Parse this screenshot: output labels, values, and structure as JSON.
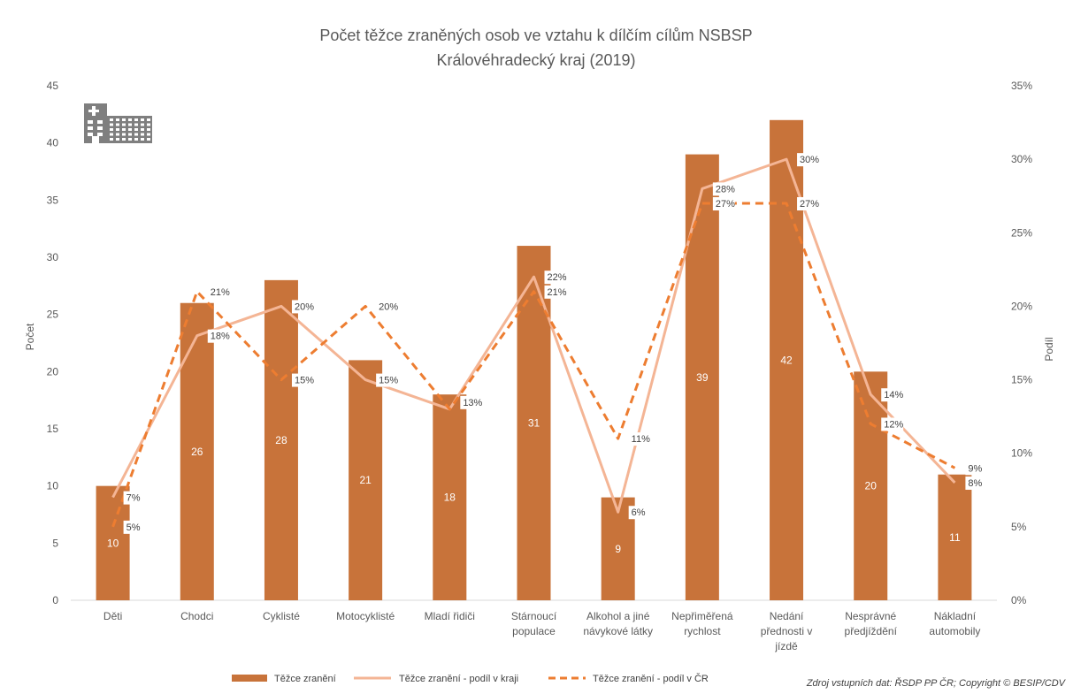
{
  "chart_data": {
    "type": "bar",
    "title": "Počet těžce zraněných osob ve vztahu k dílčím cílům NSBSP",
    "subtitle": "Královéhradecký kraj (2019)",
    "ylabel": "Počet",
    "y2label": "Podíl",
    "ylim": [
      0,
      45
    ],
    "y2lim": [
      0,
      35
    ],
    "yticks": [
      "0",
      "5",
      "10",
      "15",
      "20",
      "25",
      "30",
      "35",
      "40",
      "45"
    ],
    "y2ticks": [
      "0%",
      "5%",
      "10%",
      "15%",
      "20%",
      "25%",
      "30%",
      "35%"
    ],
    "categories": [
      [
        "Děti"
      ],
      [
        "Chodci"
      ],
      [
        "Cyklisté"
      ],
      [
        "Motocyklisté"
      ],
      [
        "Mladí řidiči"
      ],
      [
        "Stárnoucí",
        "populace"
      ],
      [
        "Alkohol a jiné",
        "návykové látky"
      ],
      [
        "Nepřiměřená",
        "rychlost"
      ],
      [
        "Nedání",
        "přednosti v",
        "jízdě"
      ],
      [
        "Nesprávné",
        "předjíždění"
      ],
      [
        "Nákladní",
        "automobily"
      ]
    ],
    "series": [
      {
        "name": "Těžce zranění",
        "type": "bar",
        "axis": "left",
        "color": "#c8733a",
        "values": [
          10,
          26,
          28,
          21,
          18,
          31,
          9,
          39,
          42,
          20,
          11
        ],
        "labels": [
          "10",
          "26",
          "28",
          "21",
          "18",
          "31",
          "9",
          "39",
          "42",
          "20",
          "11"
        ]
      },
      {
        "name": "Těžce zranění - podíl v kraji",
        "type": "line",
        "axis": "right",
        "color": "#f4b595",
        "style": "solid",
        "values": [
          7,
          18,
          20,
          15,
          13,
          22,
          6,
          28,
          30,
          14,
          8
        ],
        "labels": [
          "7%",
          "18%",
          "20%",
          "15%",
          "13%",
          "22%",
          "6%",
          "28%",
          "30%",
          "14%",
          "8%"
        ]
      },
      {
        "name": "Těžce zranění - podíl v ČR",
        "type": "line",
        "axis": "right",
        "color": "#ed7d31",
        "style": "dashed",
        "values": [
          5,
          21,
          15,
          20,
          13,
          21,
          11,
          27,
          27,
          12,
          9
        ],
        "labels": [
          "5%",
          "21%",
          "15%",
          "20%",
          "",
          "21%",
          "11%",
          "27%",
          "27%",
          "12%",
          "9%"
        ]
      }
    ],
    "grid": false,
    "legend": "bottom"
  },
  "source_text": "Zdroj vstupních dat: ŘSDP PP ČR; Copyright © BESIP/CDV",
  "icon": "hospital-building-icon"
}
